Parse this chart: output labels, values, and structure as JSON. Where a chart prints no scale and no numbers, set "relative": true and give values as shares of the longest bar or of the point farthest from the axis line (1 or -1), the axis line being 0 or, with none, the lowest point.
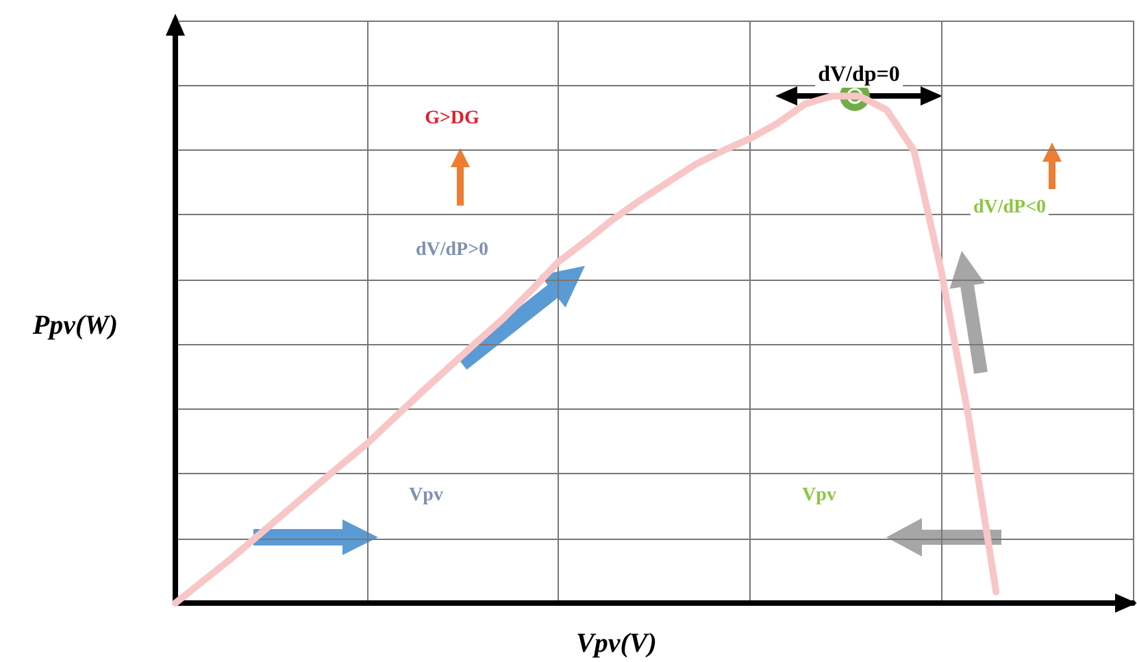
{
  "chart_data": {
    "type": "line",
    "relative": true,
    "xlabel": "Vpv(V)",
    "ylabel": "Ppv(W)",
    "categories": [
      null,
      null,
      null,
      null,
      null,
      null,
      null,
      null,
      null,
      null,
      null,
      null,
      null,
      null,
      null,
      null,
      null,
      null,
      null,
      null,
      null,
      null,
      null,
      null,
      null,
      null,
      null,
      null,
      null,
      null,
      null,
      null,
      null,
      null,
      null,
      null
    ],
    "series": [
      {
        "color": "#f8c6c6",
        "values": [
          0,
          0.043,
          0.086,
          0.132,
          0.178,
          0.224,
          0.27,
          0.314,
          0.365,
          0.416,
          0.465,
          0.514,
          0.562,
          0.616,
          0.673,
          0.714,
          0.757,
          0.795,
          0.83,
          0.865,
          0.892,
          0.916,
          0.946,
          0.984,
          1,
          1,
          0.973,
          0.892,
          0.654,
          0.365,
          0.022,
          null,
          null,
          null,
          null,
          null
        ]
      }
    ],
    "annotations": [
      "G>DG",
      "dV/dP>0",
      "dV/dp=0",
      "dV/dP<0",
      "Vpv",
      "Vpv"
    ],
    "grid": true,
    "marker": "none",
    "line_style": "solid"
  }
}
